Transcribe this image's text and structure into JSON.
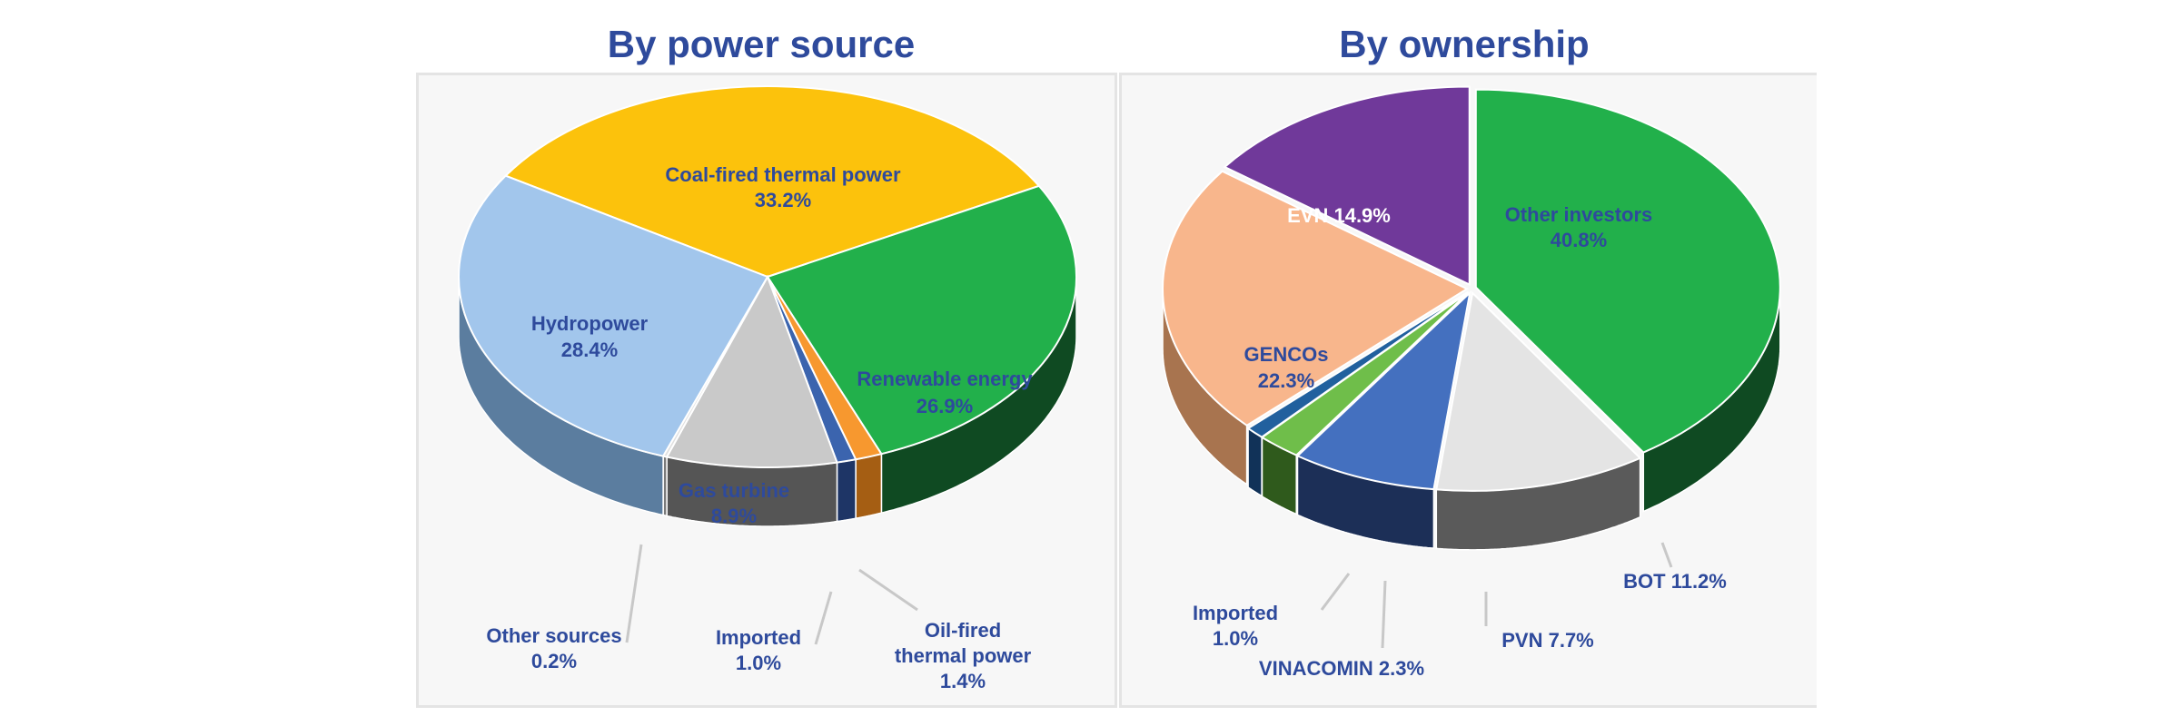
{
  "chart_data": [
    {
      "type": "pie",
      "title": "By power source",
      "slices": [
        {
          "label": "Coal-fired thermal power",
          "value_text": "33.2%",
          "value": 33.2,
          "color": "#fcc20c",
          "side": "#b58c0a",
          "label_color": "#2e4a9c"
        },
        {
          "label": "Renewable energy",
          "value_text": "26.9%",
          "value": 26.9,
          "color": "#22b04b",
          "side": "#0f4a22",
          "label_color": "#2e4a9c"
        },
        {
          "label": "Oil-fired thermal power",
          "value_text": "1.4%",
          "value": 1.4,
          "color": "#f7982f",
          "side": "#a55e13",
          "label_color": "#2e4a9c"
        },
        {
          "label": "Imported",
          "value_text": "1.0%",
          "value": 1.0,
          "color": "#3b64ae",
          "side": "#1e3566",
          "label_color": "#2e4a9c"
        },
        {
          "label": "Gas turbine",
          "value_text": "8.9%",
          "value": 8.9,
          "color": "#c9c9c9",
          "side": "#555555",
          "label_color": "#2e4a9c"
        },
        {
          "label": "Other sources",
          "value_text": "0.2%",
          "value": 0.2,
          "color": "#e0e0e0",
          "side": "#7a7a7a",
          "label_color": "#2e4a9c"
        },
        {
          "label": "Hydropower",
          "value_text": "28.4%",
          "value": 28.4,
          "color": "#a2c6ec",
          "side": "#5b7d9f",
          "label_color": "#2e4a9c"
        }
      ]
    },
    {
      "type": "pie",
      "title": "By ownership",
      "slices": [
        {
          "label": "Other investors",
          "value_text": "40.8%",
          "value": 40.8,
          "color": "#22b04b",
          "side": "#0f4a22",
          "label_color": "#2e4a9c"
        },
        {
          "label": "BOT",
          "value_text": "11.2%",
          "value": 11.2,
          "color": "#e4e4e4",
          "side": "#5a5a5a",
          "label_color": "#2e4a9c"
        },
        {
          "label": "PVN",
          "value_text": "7.7%",
          "value": 7.7,
          "color": "#4470bf",
          "side": "#1c2f57",
          "label_color": "#2e4a9c"
        },
        {
          "label": "VINACOMIN",
          "value_text": "2.3%",
          "value": 2.3,
          "color": "#6fbe4a",
          "side": "#2f5a1c",
          "label_color": "#2e4a9c"
        },
        {
          "label": "Imported",
          "value_text": "1.0%",
          "value": 1.0,
          "color": "#21609e",
          "side": "#113258",
          "label_color": "#2e4a9c"
        },
        {
          "label": "GENCOs",
          "value_text": "22.3%",
          "value": 22.3,
          "color": "#f8b68c",
          "side": "#a8744f",
          "label_color": "#2e4a9c"
        },
        {
          "label": "EVN",
          "value_text": "14.9%",
          "value": 14.9,
          "color": "#70399a",
          "side": "#3b1d55",
          "label_color": "#ffffff"
        }
      ]
    }
  ]
}
